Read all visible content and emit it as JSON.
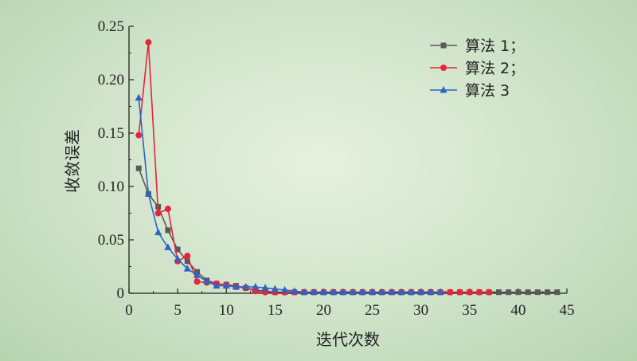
{
  "colors": {
    "algo1": "#595959",
    "algo2": "#e8243a",
    "algo3": "#2f63c4",
    "axis": "#222222"
  },
  "chart_data": {
    "type": "line",
    "title": "",
    "xlabel": "迭代次数",
    "ylabel": "收敛误差",
    "xlim": [
      0,
      45
    ],
    "ylim": [
      0,
      0.25
    ],
    "x_ticks": [
      "0",
      "5",
      "10",
      "15",
      "20",
      "25",
      "30",
      "35",
      "40",
      "45"
    ],
    "y_ticks": [
      "0",
      "0.05",
      "0.10",
      "0.15",
      "0.20",
      "0.25"
    ],
    "grid": false,
    "legend_position": "top-right",
    "series": [
      {
        "name": "算法 1；",
        "color": "#595959",
        "marker": "square",
        "x": [
          1,
          2,
          3,
          4,
          5,
          6,
          7,
          8,
          9,
          10,
          11,
          12,
          13,
          14,
          15,
          16,
          17,
          18,
          19,
          20,
          21,
          22,
          23,
          24,
          25,
          26,
          27,
          28,
          29,
          30,
          31,
          32,
          33,
          34,
          35,
          36,
          37,
          38,
          39,
          40,
          41,
          42,
          43,
          44
        ],
        "y": [
          0.117,
          0.093,
          0.081,
          0.059,
          0.041,
          0.03,
          0.02,
          0.012,
          0.009,
          0.008,
          0.007,
          0.005,
          0.003,
          0.002,
          0.001,
          0.001,
          0.001,
          0.001,
          0.001,
          0.001,
          0.001,
          0.001,
          0.001,
          0.001,
          0.001,
          0.001,
          0.001,
          0.001,
          0.001,
          0.001,
          0.001,
          0.001,
          0.001,
          0.001,
          0.001,
          0.001,
          0.001,
          0.001,
          0.001,
          0.001,
          0.001,
          0.001,
          0.001,
          0.001
        ]
      },
      {
        "name": "算法 2；",
        "color": "#e8243a",
        "marker": "circle",
        "x": [
          1,
          2,
          3,
          4,
          5,
          6,
          7,
          8,
          9,
          10,
          11,
          12,
          13,
          14,
          15,
          16,
          17,
          18,
          19,
          20,
          21,
          22,
          23,
          24,
          25,
          26,
          27,
          28,
          29,
          30,
          31,
          32,
          33,
          34,
          35,
          36,
          37
        ],
        "y": [
          0.148,
          0.235,
          0.075,
          0.079,
          0.03,
          0.035,
          0.011,
          0.01,
          0.009,
          0.008,
          0.006,
          0.005,
          0.002,
          0.001,
          0.001,
          0.001,
          0.001,
          0.001,
          0.001,
          0.001,
          0.001,
          0.001,
          0.001,
          0.001,
          0.001,
          0.001,
          0.001,
          0.001,
          0.001,
          0.001,
          0.001,
          0.001,
          0.001,
          0.001,
          0.001,
          0.001,
          0.001
        ]
      },
      {
        "name": "算法 3",
        "color": "#2f63c4",
        "marker": "triangle",
        "x": [
          1,
          2,
          3,
          4,
          5,
          6,
          7,
          8,
          9,
          10,
          11,
          12,
          13,
          14,
          15,
          16,
          17,
          18,
          19,
          20,
          21,
          22,
          23,
          24,
          25,
          26,
          27,
          28,
          29,
          30,
          31,
          32
        ],
        "y": [
          0.183,
          0.093,
          0.057,
          0.043,
          0.032,
          0.023,
          0.017,
          0.011,
          0.007,
          0.007,
          0.006,
          0.006,
          0.006,
          0.005,
          0.004,
          0.003,
          0.002,
          0.001,
          0.001,
          0.001,
          0.001,
          0.001,
          0.001,
          0.001,
          0.001,
          0.001,
          0.001,
          0.001,
          0.001,
          0.001,
          0.001,
          0.001
        ]
      }
    ]
  }
}
